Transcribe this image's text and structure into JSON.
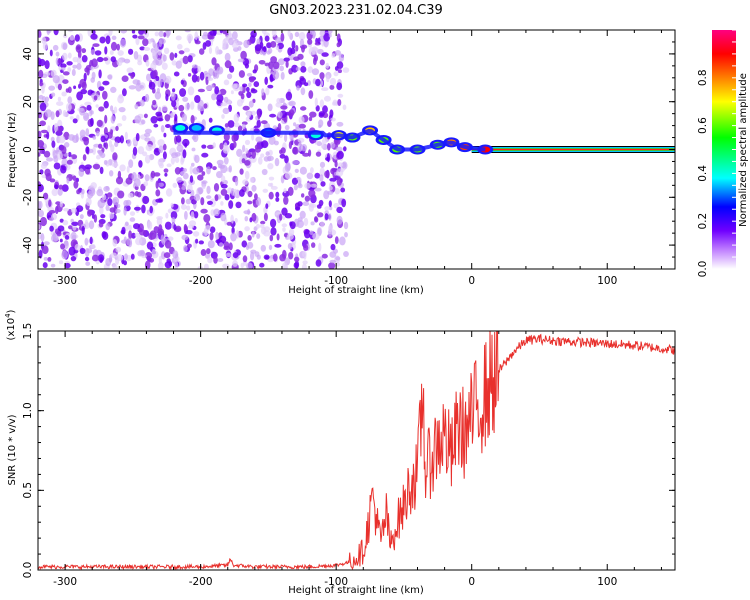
{
  "figure": {
    "title": "GN03.2023.231.02.04.C39"
  },
  "chart_data": [
    {
      "type": "heatmap",
      "xlabel": "Height of straight line (km)",
      "ylabel": "Frequency (Hz)",
      "xlim": [
        -320,
        150
      ],
      "ylim": [
        -50,
        50
      ],
      "x_ticks": [
        "-300",
        "-200",
        "-100",
        "0",
        "100"
      ],
      "x_tick_values": [
        -300,
        -200,
        -100,
        0,
        100
      ],
      "y_ticks": [
        "-40",
        "-20",
        "0",
        "20",
        "40"
      ],
      "y_tick_values": [
        -40,
        -20,
        0,
        20,
        40
      ],
      "noise_region_x": [
        -320,
        -100
      ],
      "signal_band_x": [
        0,
        150
      ],
      "signal_band_frequency": 0,
      "ridge_points": [
        {
          "x": -215,
          "y": 9,
          "amp": 0.4
        },
        {
          "x": -203,
          "y": 9,
          "amp": 0.35
        },
        {
          "x": -188,
          "y": 8,
          "amp": 0.4
        },
        {
          "x": -150,
          "y": 7,
          "amp": 0.3
        },
        {
          "x": -115,
          "y": 6,
          "amp": 0.4
        },
        {
          "x": -98,
          "y": 6,
          "amp": 0.7
        },
        {
          "x": -88,
          "y": 5,
          "amp": 0.6
        },
        {
          "x": -75,
          "y": 8,
          "amp": 0.75
        },
        {
          "x": -65,
          "y": 4,
          "amp": 0.6
        },
        {
          "x": -55,
          "y": 0,
          "amp": 0.6
        },
        {
          "x": -40,
          "y": 0,
          "amp": 0.6
        },
        {
          "x": -25,
          "y": 2,
          "amp": 0.6
        },
        {
          "x": -15,
          "y": 3,
          "amp": 0.8
        },
        {
          "x": -5,
          "y": 1,
          "amp": 0.85
        },
        {
          "x": 10,
          "y": 0,
          "amp": 0.9
        }
      ],
      "colorbar": {
        "label": "Normalized spectral amplitude",
        "range": [
          0,
          1
        ],
        "ticks": [
          "0.0",
          "0.2",
          "0.4",
          "0.6",
          "0.8"
        ],
        "tick_values": [
          0,
          0.2,
          0.4,
          0.6,
          0.8
        ]
      }
    },
    {
      "type": "line",
      "xlabel": "Height of straight line (km)",
      "ylabel": "SNR (10 * v/v)",
      "y_multiplier": "(x10",
      "y_multiplier_exp": "4",
      "y_multiplier_close": ")",
      "xlim": [
        -320,
        150
      ],
      "ylim": [
        0,
        1.5
      ],
      "x_ticks": [
        "-300",
        "-200",
        "-100",
        "0",
        "100"
      ],
      "x_tick_values": [
        -300,
        -200,
        -100,
        0,
        100
      ],
      "y_ticks": [
        "0.0",
        "0.5",
        "1.0",
        "1.5"
      ],
      "y_tick_values": [
        0,
        0.5,
        1.0,
        1.5
      ],
      "grid": false,
      "series": [
        {
          "color": "#e8302c",
          "x": [
            -320,
            -200,
            -180,
            -178,
            -176,
            -160,
            -120,
            -100,
            -90,
            -85,
            -80,
            -76,
            -73,
            -70,
            -67,
            -63,
            -60,
            -55,
            -50,
            -45,
            -40,
            -36,
            -34,
            -30,
            -25,
            -20,
            -15,
            -10,
            -5,
            0,
            5,
            10,
            15,
            20,
            25,
            30,
            35,
            40,
            50,
            60,
            80,
            100,
            120,
            140,
            150
          ],
          "y": [
            0.02,
            0.02,
            0.03,
            0.07,
            0.03,
            0.02,
            0.02,
            0.03,
            0.05,
            0.08,
            0.12,
            0.3,
            0.48,
            0.3,
            0.18,
            0.35,
            0.15,
            0.3,
            0.4,
            0.55,
            0.6,
            1.12,
            0.6,
            0.7,
            0.8,
            0.85,
            0.7,
            0.92,
            0.85,
            0.95,
            1.05,
            1.1,
            1.2,
            1.25,
            1.3,
            1.36,
            1.4,
            1.44,
            1.45,
            1.44,
            1.43,
            1.42,
            1.41,
            1.39,
            1.38
          ]
        }
      ]
    }
  ]
}
